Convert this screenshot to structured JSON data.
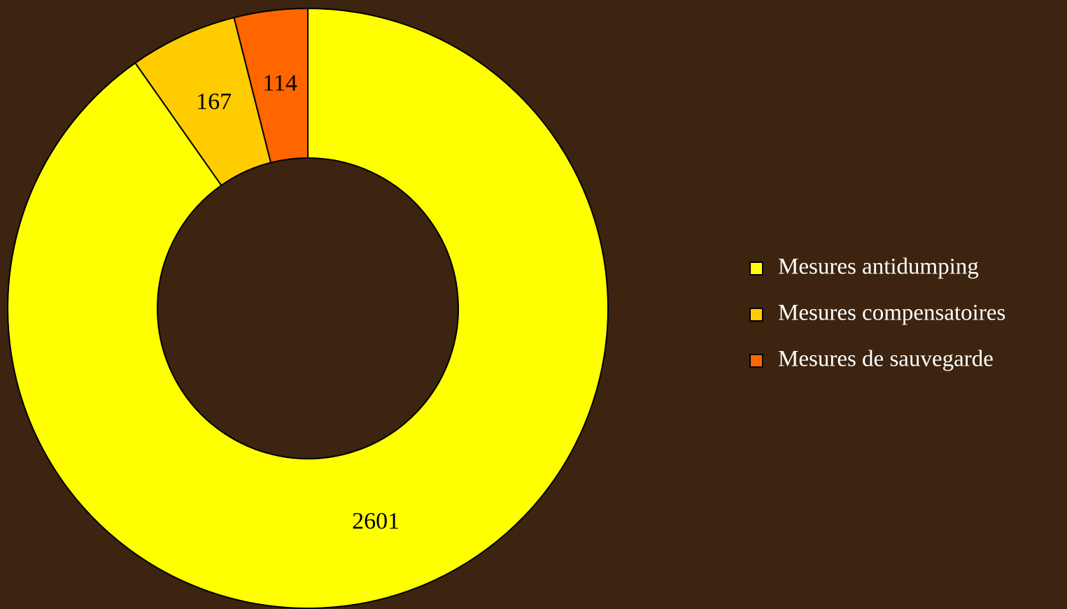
{
  "chart_data": {
    "type": "donut",
    "categories": [
      "Mesures antidumping",
      "Mesures compensatoires",
      "Mesures de sauvegarde"
    ],
    "values": [
      2601,
      167,
      114
    ],
    "colors": [
      "#ffff00",
      "#ffcc00",
      "#ff6600"
    ],
    "legend": "right"
  }
}
